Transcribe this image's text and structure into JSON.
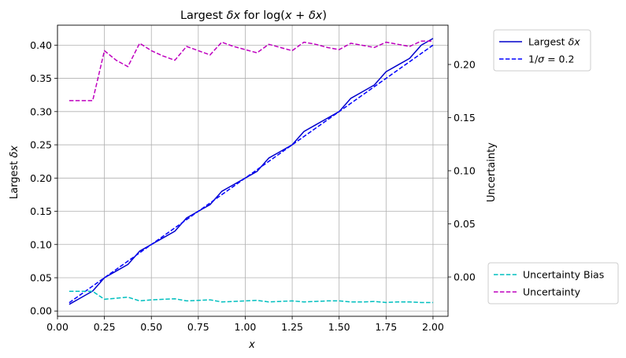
{
  "chart_data": {
    "type": "line",
    "title": "Largest δx for log(x + δx)",
    "xlabel": "x",
    "ylabel": "Largest δx",
    "y2label": "Uncertainty",
    "xlim": [
      -0.0,
      2.08
    ],
    "ylim": [
      -0.008,
      0.43
    ],
    "y2lim": [
      -0.037,
      0.237
    ],
    "xticks": [
      "0.00",
      "0.25",
      "0.50",
      "0.75",
      "1.00",
      "1.25",
      "1.50",
      "1.75",
      "2.00"
    ],
    "yticks": [
      "0.00",
      "0.05",
      "0.10",
      "0.15",
      "0.20",
      "0.25",
      "0.30",
      "0.35",
      "0.40"
    ],
    "y2ticks": [
      "0.00",
      "0.05",
      "0.10",
      "0.15",
      "0.20"
    ],
    "grid": true,
    "x": [
      0.0625,
      0.125,
      0.1875,
      0.25,
      0.3125,
      0.375,
      0.4375,
      0.5,
      0.5625,
      0.625,
      0.6875,
      0.75,
      0.8125,
      0.875,
      0.9375,
      1.0,
      1.0625,
      1.125,
      1.1875,
      1.25,
      1.3125,
      1.375,
      1.4375,
      1.5,
      1.5625,
      1.625,
      1.6875,
      1.75,
      1.8125,
      1.875,
      1.9375,
      2.0
    ],
    "series": [
      {
        "name": "Largest δx",
        "axis": "left",
        "style": "solid",
        "color": "#0000cc",
        "values": [
          0.01,
          0.02,
          0.03,
          0.05,
          0.06,
          0.07,
          0.09,
          0.1,
          0.11,
          0.12,
          0.14,
          0.15,
          0.16,
          0.18,
          0.19,
          0.2,
          0.21,
          0.23,
          0.24,
          0.25,
          0.27,
          0.28,
          0.29,
          0.3,
          0.32,
          0.33,
          0.34,
          0.36,
          0.37,
          0.38,
          0.4,
          0.41
        ]
      },
      {
        "name": "1/σ = 0.2",
        "axis": "left",
        "style": "dashed",
        "color": "#0000ff",
        "values": [
          0.0125,
          0.025,
          0.0375,
          0.05,
          0.0625,
          0.075,
          0.0875,
          0.1,
          0.1125,
          0.125,
          0.1375,
          0.15,
          0.1625,
          0.175,
          0.1875,
          0.2,
          0.2125,
          0.225,
          0.2375,
          0.25,
          0.2625,
          0.275,
          0.2875,
          0.3,
          0.3125,
          0.325,
          0.3375,
          0.35,
          0.3625,
          0.375,
          0.3875,
          0.4
        ]
      },
      {
        "name": "Uncertainty Bias",
        "axis": "right",
        "style": "dashed",
        "color": "#00bfbf",
        "values": [
          -0.0135,
          -0.0135,
          -0.0135,
          -0.021,
          -0.02,
          -0.019,
          -0.0225,
          -0.0215,
          -0.021,
          -0.0205,
          -0.0225,
          -0.022,
          -0.0215,
          -0.0235,
          -0.023,
          -0.0225,
          -0.022,
          -0.0235,
          -0.023,
          -0.0225,
          -0.0235,
          -0.023,
          -0.0225,
          -0.0225,
          -0.0235,
          -0.0235,
          -0.023,
          -0.024,
          -0.0235,
          -0.0235,
          -0.024,
          -0.024
        ]
      },
      {
        "name": "Uncertainty",
        "axis": "right",
        "style": "dashed",
        "color": "#bf00bf",
        "values": [
          0.166,
          0.166,
          0.166,
          0.213,
          0.204,
          0.198,
          0.22,
          0.213,
          0.208,
          0.204,
          0.217,
          0.213,
          0.209,
          0.221,
          0.217,
          0.214,
          0.211,
          0.219,
          0.216,
          0.213,
          0.221,
          0.219,
          0.216,
          0.214,
          0.22,
          0.218,
          0.216,
          0.221,
          0.219,
          0.217,
          0.222,
          0.222
        ]
      }
    ],
    "legend_top": [
      "Largest δx",
      "1/σ = 0.2"
    ],
    "legend_bottom": [
      "Uncertainty Bias",
      "Uncertainty"
    ],
    "legend_placement": "outside right"
  }
}
